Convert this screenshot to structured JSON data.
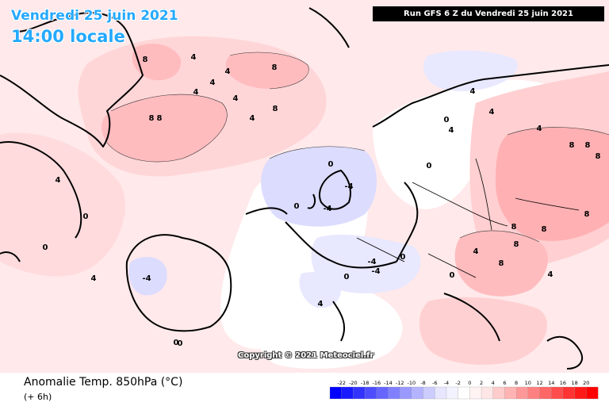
{
  "header": {
    "date_line": "Vendredi 25 juin 2021",
    "time_line": "14:00 locale",
    "run_banner": "Run GFS 6 Z du Vendredi 25 juin 2021"
  },
  "map": {
    "copyright": "Copyright © 2021 Meteociel.fr",
    "contour_labels": {
      "greenland_east": [
        "8",
        "4",
        "8",
        "4",
        "4",
        "8",
        "8",
        "4",
        "4",
        "8",
        "4"
      ],
      "atlantic_low": [
        "-4",
        "0"
      ],
      "uk": [
        "-4",
        "-4",
        "0",
        "0"
      ],
      "scandinavia": [
        "4",
        "0",
        "4",
        "4",
        "0"
      ],
      "russia": [
        "4",
        "8",
        "8",
        "8",
        "8",
        "8",
        "8"
      ],
      "central_europe": [
        "4",
        "8",
        "8",
        "0",
        "4"
      ],
      "iberia_west": [
        "-4",
        "0",
        "4",
        "-4",
        "0"
      ],
      "west_atlantic": [
        "4",
        "0",
        "0",
        "4",
        "0"
      ]
    },
    "colors": {
      "warm_1": "#ffe6e6",
      "warm_2": "#ffcccc",
      "warm_3": "#ffb3b3",
      "warm_4": "#ff9999",
      "cool_1": "#e6e6ff",
      "cool_2": "#ccccff",
      "coast": "#000000"
    }
  },
  "footer": {
    "field_label": "Anomalie Temp. 850hPa (°C)",
    "lead_label": "(+ 6h)"
  },
  "legend": {
    "ticks": [
      "-22",
      "-20",
      "-18",
      "-16",
      "-14",
      "-12",
      "-10",
      "-8",
      "-6",
      "-4",
      "-2",
      "0",
      "2",
      "4",
      "6",
      "8",
      "10",
      "12",
      "14",
      "16",
      "18",
      "20"
    ],
    "colors": [
      "#0000ff",
      "#1a1aff",
      "#3333ff",
      "#4d4dff",
      "#6666ff",
      "#8080ff",
      "#9999ff",
      "#b3b3ff",
      "#ccccff",
      "#e6e6ff",
      "#f3f3ff",
      "#ffffff",
      "#fff3f3",
      "#ffe6e6",
      "#ffcccc",
      "#ffb3b3",
      "#ff9999",
      "#ff8080",
      "#ff6666",
      "#ff4d4d",
      "#ff3333",
      "#ff1a1a",
      "#ff0000"
    ]
  }
}
